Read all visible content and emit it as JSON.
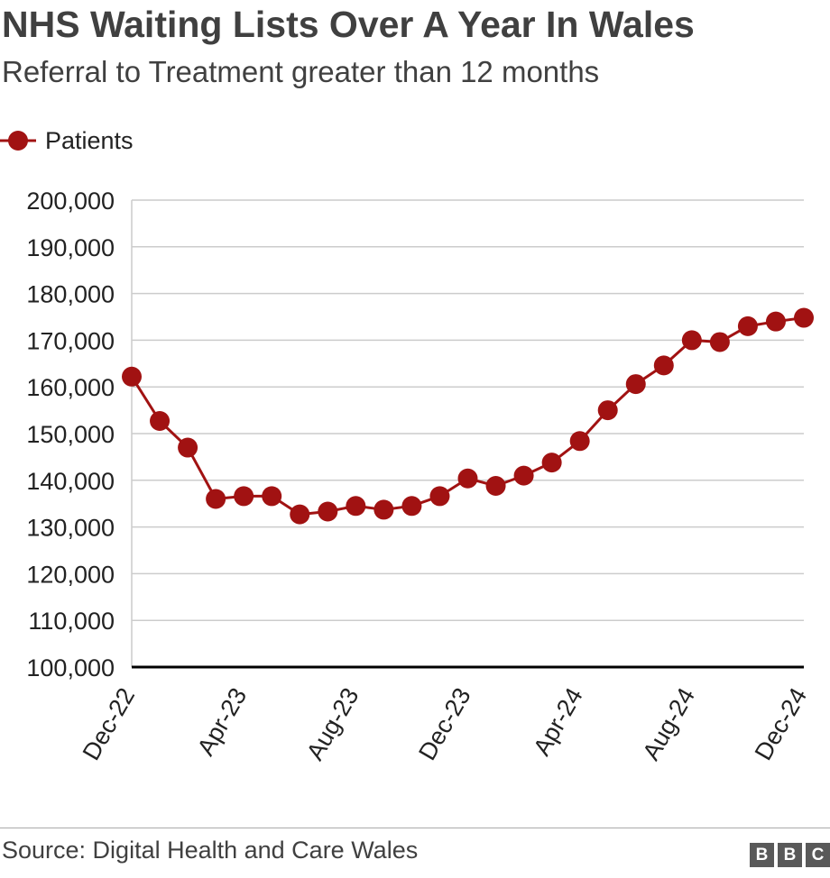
{
  "header": {
    "title": "NHS Waiting Lists Over A Year In Wales",
    "subtitle": "Referral to Treatment greater than 12 months"
  },
  "legend": {
    "label": "Patients"
  },
  "footer": {
    "source": "Source: Digital Health and Care Wales",
    "logo": [
      "B",
      "B",
      "C"
    ]
  },
  "colors": {
    "series": "#a11212",
    "grid": "#cccccc",
    "axis": "#000000"
  },
  "chart_data": {
    "type": "line",
    "title": "NHS Waiting Lists Over A Year In Wales",
    "subtitle": "Referral to Treatment greater than 12 months",
    "xlabel": "",
    "ylabel": "",
    "ylim": [
      100000,
      200000
    ],
    "yticks": [
      100000,
      110000,
      120000,
      130000,
      140000,
      150000,
      160000,
      170000,
      180000,
      190000,
      200000
    ],
    "ytick_labels": [
      "100,000",
      "110,000",
      "120,000",
      "130,000",
      "140,000",
      "150,000",
      "160,000",
      "170,000",
      "180,000",
      "190,000",
      "200,000"
    ],
    "xtick_labels": [
      "Dec-22",
      "Apr-23",
      "Aug-23",
      "Dec-23",
      "Apr-24",
      "Aug-24",
      "Dec-24"
    ],
    "xtick_indices": [
      0,
      4,
      8,
      12,
      16,
      20,
      24
    ],
    "grid": true,
    "legend_position": "top-left",
    "series": [
      {
        "name": "Patients",
        "values": [
          162200,
          152700,
          147000,
          136000,
          136600,
          136600,
          132700,
          133300,
          134500,
          133700,
          134500,
          136600,
          140400,
          138800,
          141000,
          143800,
          148400,
          155000,
          160600,
          164600,
          170000,
          169600,
          173000,
          174000,
          174800
        ]
      }
    ]
  }
}
